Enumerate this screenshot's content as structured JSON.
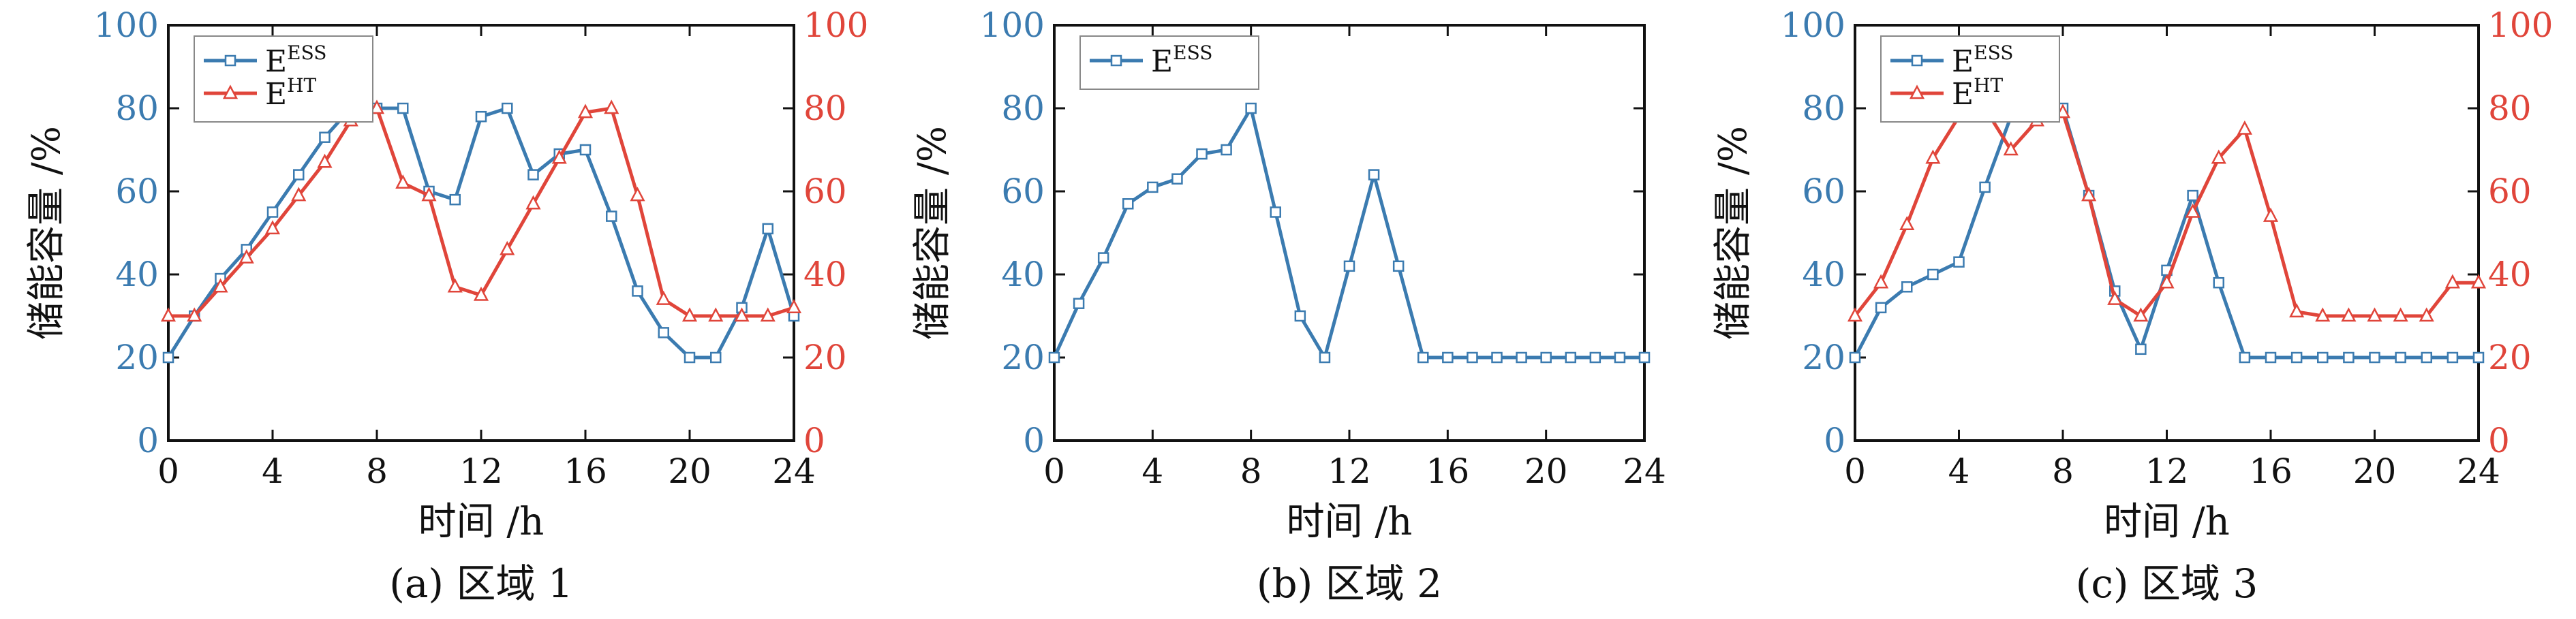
{
  "colors": {
    "ess": "#3b7bb0",
    "ht": "#e0453a",
    "axis": "#111111"
  },
  "chart_data": [
    {
      "type": "line",
      "caption": "(a) 区域 1",
      "xlabel": "时间 /h",
      "ylabel": "储能容量 /%",
      "xlim": [
        0,
        24
      ],
      "ylim": [
        0,
        100
      ],
      "xticks": [
        0,
        4,
        8,
        12,
        16,
        20,
        24
      ],
      "yticks": [
        0,
        20,
        40,
        60,
        80,
        100
      ],
      "right_axis": true,
      "legend": "top-left",
      "x": [
        0,
        1,
        2,
        3,
        4,
        5,
        6,
        7,
        8,
        9,
        10,
        11,
        12,
        13,
        14,
        15,
        16,
        17,
        18,
        19,
        20,
        21,
        22,
        23,
        24
      ],
      "series": [
        {
          "name": "E",
          "sup": "ESS",
          "key": "ess",
          "marker": "square",
          "values": [
            20,
            30,
            39,
            46,
            55,
            64,
            73,
            80,
            80,
            80,
            60,
            58,
            78,
            80,
            64,
            69,
            70,
            54,
            36,
            26,
            20,
            20,
            32,
            51,
            30
          ]
        },
        {
          "name": "E",
          "sup": "HT",
          "key": "ht",
          "marker": "triangle",
          "values": [
            30,
            30,
            37,
            44,
            51,
            59,
            67,
            77,
            80,
            62,
            59,
            37,
            35,
            46,
            57,
            68,
            79,
            80,
            59,
            34,
            30,
            30,
            30,
            30,
            32
          ]
        }
      ]
    },
    {
      "type": "line",
      "caption": "(b) 区域 2",
      "xlabel": "时间 /h",
      "ylabel": "储能容量 /%",
      "xlim": [
        0,
        24
      ],
      "ylim": [
        0,
        100
      ],
      "xticks": [
        0,
        4,
        8,
        12,
        16,
        20,
        24
      ],
      "yticks": [
        0,
        20,
        40,
        60,
        80,
        100
      ],
      "right_axis": false,
      "legend": "top-left",
      "x": [
        0,
        1,
        2,
        3,
        4,
        5,
        6,
        7,
        8,
        9,
        10,
        11,
        12,
        13,
        14,
        15,
        16,
        17,
        18,
        19,
        20,
        21,
        22,
        23,
        24
      ],
      "series": [
        {
          "name": "E",
          "sup": "ESS",
          "key": "ess",
          "marker": "square",
          "values": [
            20,
            33,
            44,
            57,
            61,
            63,
            69,
            70,
            80,
            55,
            30,
            20,
            42,
            64,
            42,
            20,
            20,
            20,
            20,
            20,
            20,
            20,
            20,
            20,
            20
          ]
        }
      ]
    },
    {
      "type": "line",
      "caption": "(c) 区域 3",
      "xlabel": "时间 /h",
      "ylabel": "储能容量 /%",
      "xlim": [
        0,
        24
      ],
      "ylim": [
        0,
        100
      ],
      "xticks": [
        0,
        4,
        8,
        12,
        16,
        20,
        24
      ],
      "yticks": [
        0,
        20,
        40,
        60,
        80,
        100
      ],
      "right_axis": true,
      "legend": "top-left",
      "x": [
        0,
        1,
        2,
        3,
        4,
        5,
        6,
        7,
        8,
        9,
        10,
        11,
        12,
        13,
        14,
        15,
        16,
        17,
        18,
        19,
        20,
        21,
        22,
        23,
        24
      ],
      "series": [
        {
          "name": "E",
          "sup": "ESS",
          "key": "ess",
          "marker": "square",
          "values": [
            20,
            32,
            37,
            40,
            43,
            61,
            78,
            80,
            80,
            59,
            36,
            22,
            41,
            59,
            38,
            20,
            20,
            20,
            20,
            20,
            20,
            20,
            20,
            20,
            20
          ]
        },
        {
          "name": "E",
          "sup": "HT",
          "key": "ht",
          "marker": "triangle",
          "values": [
            30,
            38,
            52,
            68,
            78,
            80,
            70,
            77,
            79,
            59,
            34,
            30,
            38,
            55,
            68,
            75,
            54,
            31,
            30,
            30,
            30,
            30,
            30,
            38,
            38
          ]
        }
      ]
    }
  ]
}
